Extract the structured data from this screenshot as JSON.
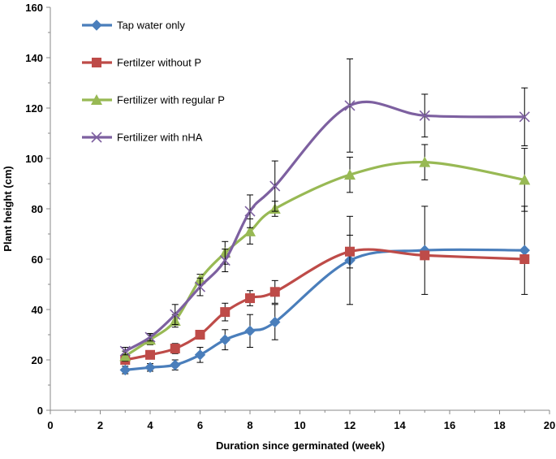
{
  "chart_data": {
    "type": "line",
    "title": "",
    "xlabel": "Duration since germinated (week)",
    "ylabel": "Plant height (cm)",
    "xlim": [
      0,
      20
    ],
    "ylim": [
      0,
      160
    ],
    "x_ticks": [
      0,
      2,
      4,
      6,
      8,
      10,
      12,
      14,
      16,
      18,
      20
    ],
    "y_ticks": [
      0,
      20,
      40,
      60,
      80,
      100,
      120,
      140,
      160
    ],
    "grid": false,
    "legend_position": "top-left",
    "x": [
      3,
      4,
      5,
      6,
      7,
      8,
      9,
      12,
      15,
      19
    ],
    "series": [
      {
        "name": "Tap water only",
        "color": "#4a7ebb",
        "marker": "diamond",
        "values": [
          16,
          17,
          18,
          22,
          28,
          31.5,
          35,
          59.5,
          63.5,
          63.5
        ],
        "errors": [
          1.5,
          1.5,
          2,
          3,
          4,
          6.5,
          7,
          17.5,
          17.5,
          17.5
        ]
      },
      {
        "name": "Fertilzer without P",
        "color": "#be4b48",
        "marker": "square",
        "values": [
          20,
          22,
          24.5,
          30,
          39,
          44.5,
          47,
          63,
          61.5,
          60
        ],
        "errors": [
          1.5,
          1.5,
          2,
          0,
          3.5,
          3,
          4.5,
          6.5,
          0,
          0
        ]
      },
      {
        "name": "Fertilizer with regular P",
        "color": "#98b954",
        "marker": "triangle",
        "values": [
          21.5,
          28,
          35.5,
          52,
          62.5,
          71,
          80,
          93.5,
          98.5,
          91.5
        ],
        "errors": [
          2,
          2,
          2.5,
          2,
          4.5,
          5,
          3,
          7,
          7,
          12.5
        ]
      },
      {
        "name": "Fertilizer with nHA",
        "color": "#7d60a0",
        "marker": "x",
        "values": [
          23.5,
          29,
          38,
          49,
          59.5,
          79,
          89,
          121,
          117,
          116.5
        ],
        "errors": [
          1.5,
          1.5,
          4,
          3.5,
          4.5,
          6.5,
          10,
          18.5,
          8.5,
          11.5
        ]
      }
    ]
  }
}
